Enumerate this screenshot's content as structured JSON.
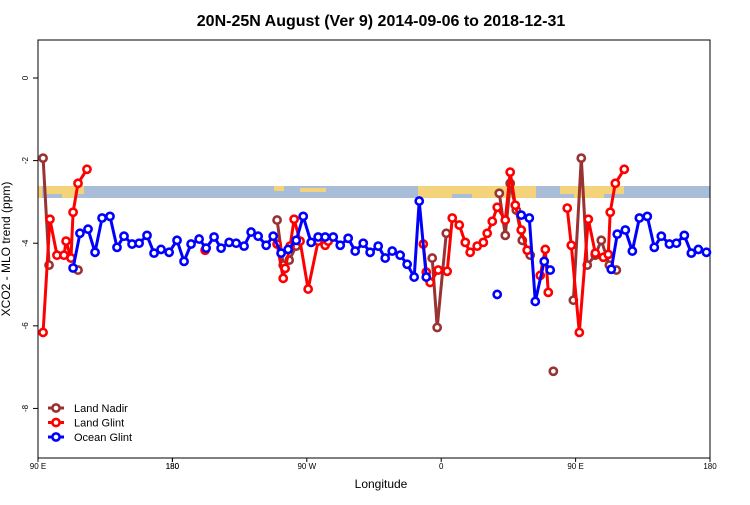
{
  "chart_data": {
    "type": "line",
    "title": "20N-25N August (Ver 9)   2014-09-06 to 2018-12-31",
    "x_label": "Longitude",
    "y_label": "XCO2 - MLO trend (ppm)",
    "xlim": [
      90,
      540
    ],
    "ylim": [
      -9.2,
      0.92
    ],
    "xticks": [
      {
        "value": 90,
        "label": "90 E"
      },
      180,
      {
        "value": 270,
        "label": "90 W"
      },
      {
        "value": 360,
        "label": "0"
      },
      {
        "value": 450,
        "label": "90 E"
      },
      180,
      {
        "value": 540,
        "label": "180"
      }
    ],
    "yticks": [
      0,
      -2,
      -4,
      -6,
      -8
    ],
    "grid": false,
    "legend": "bottom-left",
    "series": [
      {
        "name": "Land Nadir",
        "color": "#993333",
        "x": [
          93.4,
          97.4,
          null,
          116.8,
          null,
          250.1,
          254.2,
          258.2,
          262.9,
          null,
          354.0,
          357.3,
          363.4,
          null,
          398.9,
          402.9,
          406.2,
          410.3,
          414.3,
          419.6,
          null,
          435.1,
          null,
          448.5,
          453.8,
          457.8,
          463.2,
          467.2,
          472.6,
          477.3
        ],
        "values": [
          -1.94,
          -4.53,
          null,
          -4.65,
          null,
          -3.44,
          -4.53,
          -4.41,
          -4.07,
          null,
          -4.36,
          -6.04,
          -3.76,
          null,
          -2.79,
          -3.81,
          -2.55,
          -3.2,
          -3.93,
          -4.29,
          null,
          -7.1,
          null,
          -5.38,
          -1.94,
          -4.53,
          -4.29,
          -3.93,
          -4.53,
          -4.65
        ]
      },
      {
        "name": "Land Glint",
        "color": "#ff0000",
        "x": [
          93.4,
          98.0,
          102.7,
          107.4,
          108.8,
          112.1,
          113.5,
          116.8,
          122.8,
          null,
          201.9,
          null,
          250.1,
          254.2,
          255.5,
          258.8,
          261.5,
          265.5,
          270.9,
          277.6,
          282.3,
          284.3,
          null,
          348.0,
          350.0,
          352.6,
          358.0,
          364.0,
          367.4,
          372.1,
          376.1,
          379.4,
          384.1,
          388.2,
          390.8,
          394.2,
          397.5,
          402.9,
          406.2,
          409.6,
          413.6,
          417.6,
          null,
          426.3,
          429.7,
          431.7,
          null,
          444.4,
          447.1,
          452.5,
          458.5,
          463.2,
          468.6,
          471.9,
          473.2,
          476.6,
          482.6
        ],
        "values": [
          -6.16,
          -3.42,
          -4.29,
          -4.29,
          -3.95,
          -4.36,
          -3.25,
          -2.55,
          -2.21,
          null,
          -4.17,
          null,
          -4.02,
          -4.85,
          -4.61,
          -4.07,
          -3.42,
          -3.95,
          -5.11,
          -3.95,
          -4.05,
          -3.95,
          null,
          -4.02,
          -4.7,
          -4.95,
          -4.65,
          -4.68,
          -3.39,
          -3.56,
          -3.98,
          -4.22,
          -4.07,
          -3.98,
          -3.76,
          -3.47,
          -3.13,
          -3.44,
          -2.28,
          -3.08,
          -3.68,
          -4.17,
          null,
          -4.78,
          -4.15,
          -5.19,
          null,
          -3.15,
          -4.05,
          -6.16,
          -3.42,
          -4.24,
          -4.34,
          -4.27,
          -3.25,
          -2.55,
          -2.21
        ]
      },
      {
        "name": "Ocean Glint",
        "color": "#0000ff",
        "x": [
          113.5,
          118.1,
          123.5,
          128.2,
          132.9,
          138.2,
          142.9,
          147.6,
          153.0,
          157.7,
          163.0,
          167.7,
          172.4,
          177.8,
          183.1,
          187.8,
          192.5,
          197.9,
          202.6,
          207.9,
          212.6,
          218.0,
          222.7,
          228.0,
          232.7,
          237.4,
          242.8,
          247.5,
          252.8,
          257.5,
          262.9,
          267.6,
          272.9,
          277.6,
          282.3,
          287.7,
          292.4,
          297.7,
          302.4,
          307.8,
          312.4,
          317.8,
          322.5,
          327.2,
          332.5,
          337.2,
          341.9,
          345.3,
          350.0,
          null,
          397.5,
          null,
          413.6,
          419.0,
          423.0,
          429.0,
          433.0,
          null,
          473.9,
          477.9,
          483.3,
          488.0,
          492.7,
          498.0,
          502.7,
          507.4,
          512.8,
          517.5,
          522.8,
          527.5,
          532.2,
          537.6
        ],
        "values": [
          -4.6,
          -3.76,
          -3.66,
          -4.22,
          -3.39,
          -3.35,
          -4.1,
          -3.83,
          -4.02,
          -4.0,
          -3.81,
          -4.24,
          -4.15,
          -4.22,
          -3.93,
          -4.44,
          -4.02,
          -3.9,
          -4.12,
          -3.85,
          -4.12,
          -3.98,
          -4.0,
          -4.07,
          -3.73,
          -3.83,
          -4.05,
          -3.83,
          -4.24,
          -4.15,
          -3.93,
          -3.35,
          -3.98,
          -3.85,
          -3.85,
          -3.85,
          -4.05,
          -3.88,
          -4.19,
          -4.0,
          -4.22,
          -4.07,
          -4.36,
          -4.19,
          -4.29,
          -4.51,
          -4.82,
          -2.98,
          -4.82,
          null,
          -5.24,
          null,
          -3.32,
          -3.39,
          -5.41,
          -4.44,
          -4.65,
          null,
          -4.63,
          -3.78,
          -3.68,
          -4.19,
          -3.39,
          -3.35,
          -4.1,
          -3.83,
          -4.02,
          -4.0,
          -3.81,
          -4.24,
          -4.15,
          -4.22
        ]
      }
    ]
  }
}
